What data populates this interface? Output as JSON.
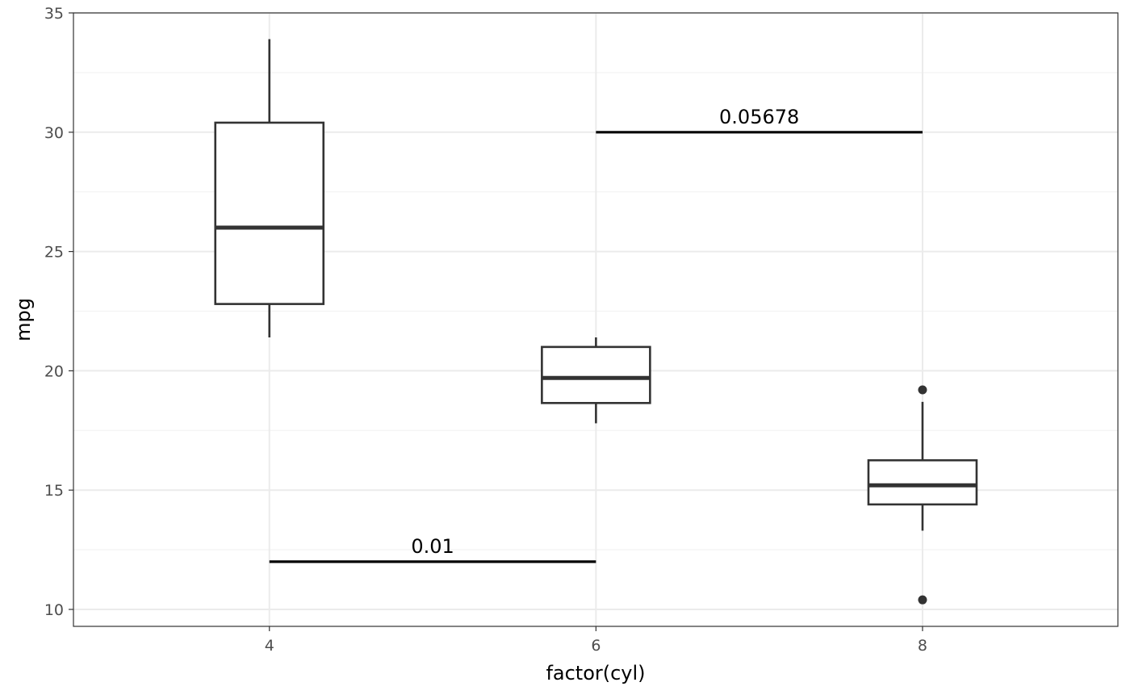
{
  "chart_data": {
    "type": "box",
    "xlabel": "factor(cyl)",
    "ylabel": "mpg",
    "categories": [
      "4",
      "6",
      "8"
    ],
    "ylim": [
      9.25,
      35
    ],
    "y_ticks": [
      10,
      15,
      20,
      25,
      30,
      35
    ],
    "grid": true,
    "boxes": [
      {
        "category": "4",
        "whisker_low": 21.4,
        "q1": 22.8,
        "median": 26.0,
        "q3": 30.4,
        "whisker_high": 33.9,
        "outliers": []
      },
      {
        "category": "6",
        "whisker_low": 17.8,
        "q1": 18.65,
        "median": 19.7,
        "q3": 21.0,
        "whisker_high": 21.4,
        "outliers": []
      },
      {
        "category": "8",
        "whisker_low": 13.3,
        "q1": 14.4,
        "median": 15.2,
        "q3": 16.25,
        "whisker_high": 18.7,
        "outliers": [
          19.2,
          10.4
        ]
      }
    ],
    "annotations": [
      {
        "from": "4",
        "to": "6",
        "y": 12,
        "label": "0.01"
      },
      {
        "from": "6",
        "to": "8",
        "y": 30,
        "label": "0.05678"
      }
    ],
    "colors": {
      "box_stroke": "#333333",
      "outlier": "#333333",
      "bracket": "#000000",
      "grid_major": "#ebebeb",
      "grid_minor": "#f2f2f2",
      "panel_border": "#333333"
    }
  }
}
